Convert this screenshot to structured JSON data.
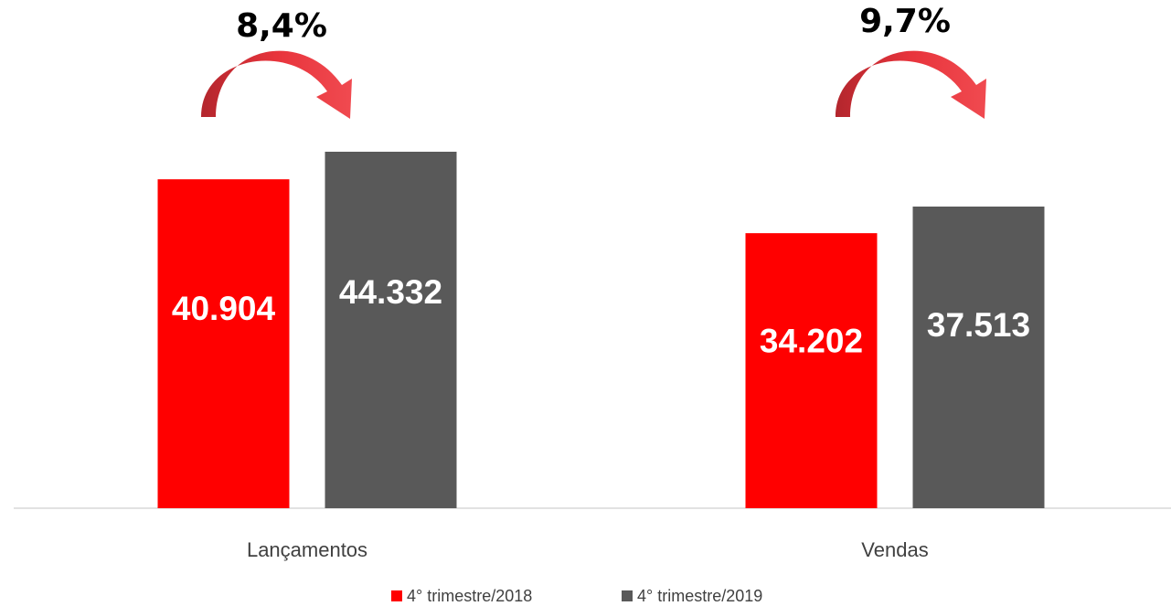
{
  "chart_data": {
    "type": "bar",
    "categories": [
      "Lançamentos",
      "Vendas"
    ],
    "series": [
      {
        "name": "4° trimestre/2018",
        "color": "#ff0000",
        "values": [
          40904,
          34202
        ],
        "value_labels": [
          "40.904",
          "34.202"
        ]
      },
      {
        "name": "4° trimestre/2019",
        "color": "#595959",
        "values": [
          44332,
          37513
        ],
        "value_labels": [
          "44.332",
          "37.513"
        ]
      }
    ],
    "annotations": [
      "8,4%",
      "9,7%"
    ],
    "legend": "bottom"
  }
}
